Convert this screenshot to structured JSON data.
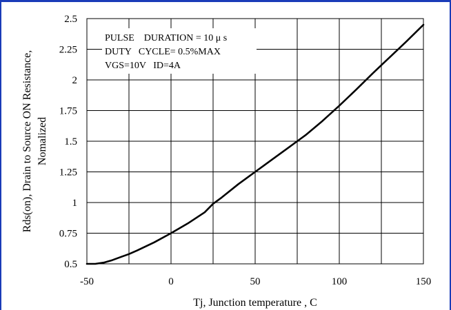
{
  "chart_data": {
    "type": "line",
    "xlabel": "Tj, Junction temperature , C",
    "ylabel_lines": [
      "Rds(on), Drain to Source ON  Resistance,",
      "Nomalized"
    ],
    "xlim": [
      -50,
      150
    ],
    "ylim": [
      0.5,
      2.5
    ],
    "x_ticks": [
      -50,
      0,
      50,
      100,
      150
    ],
    "x_tick_labels": [
      "-50",
      "0",
      "50",
      "100",
      "150"
    ],
    "x_grid": [
      -50,
      -25,
      0,
      25,
      50,
      75,
      100,
      125,
      150
    ],
    "y_ticks": [
      0.5,
      0.75,
      1,
      1.25,
      1.5,
      1.75,
      2,
      2.25,
      2.5
    ],
    "y_tick_labels": [
      "0.5",
      "0.75",
      "1",
      "1.25",
      "1.5",
      "1.75",
      "2",
      "2.25",
      "2.5"
    ],
    "grid": true,
    "annotations": [
      "PULSE    DURATION = 10 μ s",
      "DUTY   CYCLE= 0.5%MAX",
      "VGS=10V   ID=4A"
    ],
    "series": [
      {
        "x": [
          -50,
          -45,
          -40,
          -35,
          -30,
          -25,
          -20,
          -10,
          0,
          10,
          20,
          25,
          30,
          40,
          50,
          60,
          70,
          75,
          80,
          90,
          100,
          110,
          120,
          125,
          130,
          140,
          150
        ],
        "values": [
          0.5,
          0.5,
          0.51,
          0.53,
          0.555,
          0.58,
          0.61,
          0.675,
          0.75,
          0.83,
          0.92,
          0.99,
          1.04,
          1.15,
          1.25,
          1.35,
          1.45,
          1.5,
          1.55,
          1.665,
          1.79,
          1.92,
          2.055,
          2.12,
          2.185,
          2.315,
          2.45
        ]
      }
    ]
  }
}
